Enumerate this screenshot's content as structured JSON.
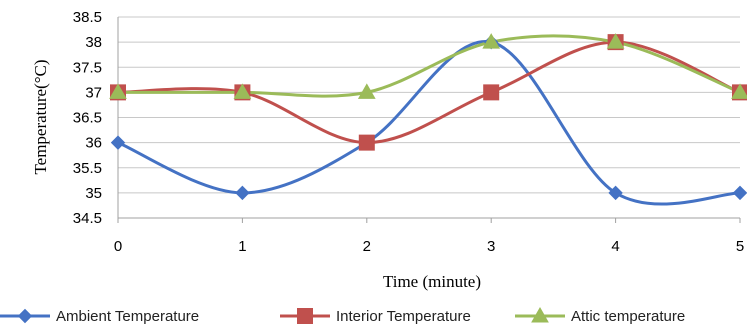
{
  "chart_data": {
    "type": "line",
    "xlabel": "Time (minute)",
    "ylabel": "Temperature(°C)",
    "x": [
      0,
      1,
      2,
      3,
      4,
      5
    ],
    "ylim": [
      34.5,
      38.5
    ],
    "yticks": [
      "34.5",
      "35",
      "35.5",
      "36",
      "36.5",
      "37",
      "37.5",
      "38",
      "38.5"
    ],
    "grid": "horizontal",
    "smooth": true,
    "legend_position": "bottom",
    "series": [
      {
        "name": "Ambient Temperature",
        "values": [
          36,
          35,
          36,
          38,
          35,
          35
        ],
        "color": "#4472C4",
        "marker": "diamond"
      },
      {
        "name": "Interior Temperature",
        "values": [
          37,
          37,
          36,
          37,
          38,
          37
        ],
        "color": "#C0504D",
        "marker": "square"
      },
      {
        "name": "Attic temperature",
        "values": [
          37,
          37,
          37,
          38,
          38,
          37
        ],
        "color": "#9BBB59",
        "marker": "triangle"
      }
    ]
  }
}
